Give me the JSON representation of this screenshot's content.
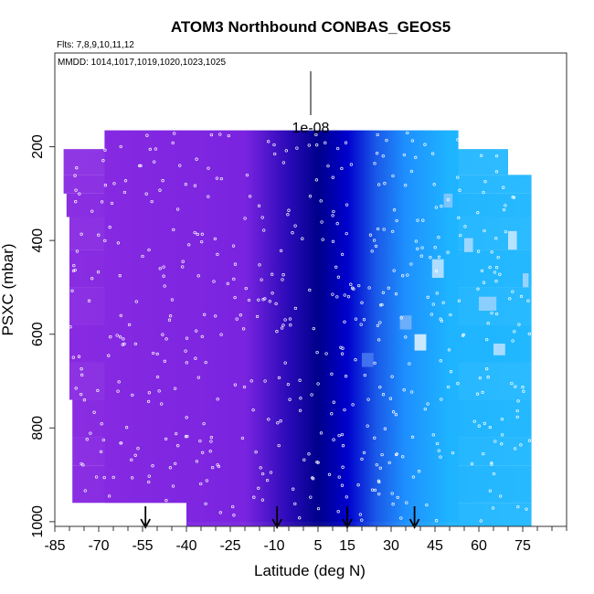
{
  "chart_data": {
    "type": "heatmap",
    "title": "ATOM3 Northbound CONBAS_GEOS5",
    "flights_label": "Flts: 7,8,9,10,11,12",
    "dates_label": "MMDD: 1014,1017,1019,1020,1023,1025",
    "xlabel": "Latitude (deg N)",
    "ylabel": "PSXC (mbar)",
    "xlim": [
      -85,
      90
    ],
    "ylim": [
      1010,
      0
    ],
    "x_ticks": [
      -85,
      -70,
      -55,
      -40,
      -25,
      -10,
      5,
      15,
      30,
      45,
      60,
      75
    ],
    "y_ticks": [
      200,
      400,
      600,
      800,
      1000
    ],
    "legend_scale_label": "1e-08",
    "colors": {
      "purple": "#8a2be2",
      "dark_blue": "#00008b",
      "blue": "#0000cd",
      "light_blue": "#1eb4ff",
      "pale_blue": "#c8e6ff",
      "points": "#ffffff"
    },
    "color_gradient_by_latitude": [
      {
        "lat": -85,
        "color": "#8a2be2"
      },
      {
        "lat": -20,
        "color": "#7a24e0"
      },
      {
        "lat": -5,
        "color": "#2a0ab8"
      },
      {
        "lat": 5,
        "color": "#00008b"
      },
      {
        "lat": 15,
        "color": "#0000cd"
      },
      {
        "lat": 25,
        "color": "#1a5ae8"
      },
      {
        "lat": 35,
        "color": "#1e90ff"
      },
      {
        "lat": 50,
        "color": "#1eb4ff"
      },
      {
        "lat": 78,
        "color": "#22b8ff"
      }
    ],
    "arrow_latitudes": [
      -54,
      -9,
      15,
      38
    ],
    "data_extent": {
      "lat_range_top": [
        -68,
        53
      ],
      "pressure_top_mbar": 165,
      "lat_min": -82,
      "lat_max": 78,
      "pressure_bottom_mbar": 1000
    }
  }
}
